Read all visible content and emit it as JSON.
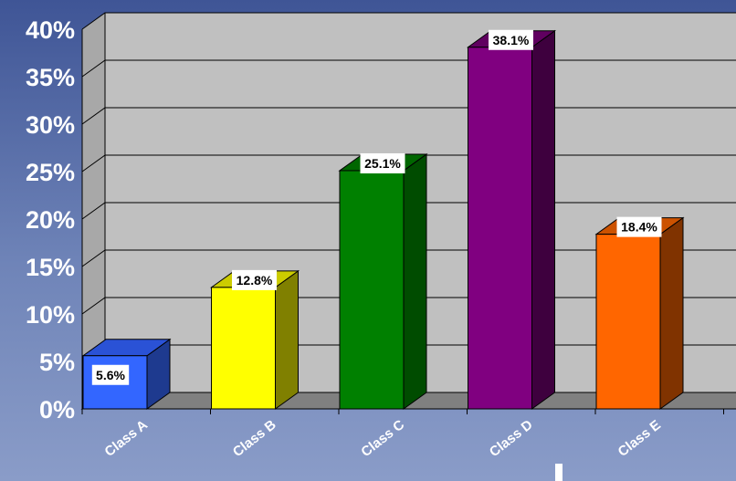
{
  "chart_data": {
    "type": "bar",
    "style": "3d-column",
    "categories": [
      "Class A",
      "Class B",
      "Class C",
      "Class D",
      "Class E"
    ],
    "values": [
      5.6,
      12.8,
      25.1,
      38.1,
      18.4
    ],
    "data_labels": [
      "5.6%",
      "12.8%",
      "25.1%",
      "38.1%",
      "18.4%"
    ],
    "y_ticks": [
      "0%",
      "5%",
      "10%",
      "15%",
      "20%",
      "25%",
      "30%",
      "35%",
      "40%"
    ],
    "ylim": [
      0,
      40
    ],
    "grid": true,
    "colors": {
      "front": [
        "#3366ff",
        "#ffff00",
        "#008000",
        "#800080",
        "#ff6600"
      ],
      "side": [
        "#1e3a8f",
        "#808000",
        "#004c00",
        "#3e003e",
        "#803300"
      ],
      "top": [
        "#2a52d6",
        "#cccc00",
        "#006600",
        "#600060",
        "#cc5200"
      ],
      "wall": "#c0c0c0",
      "floor": "#808080"
    }
  }
}
